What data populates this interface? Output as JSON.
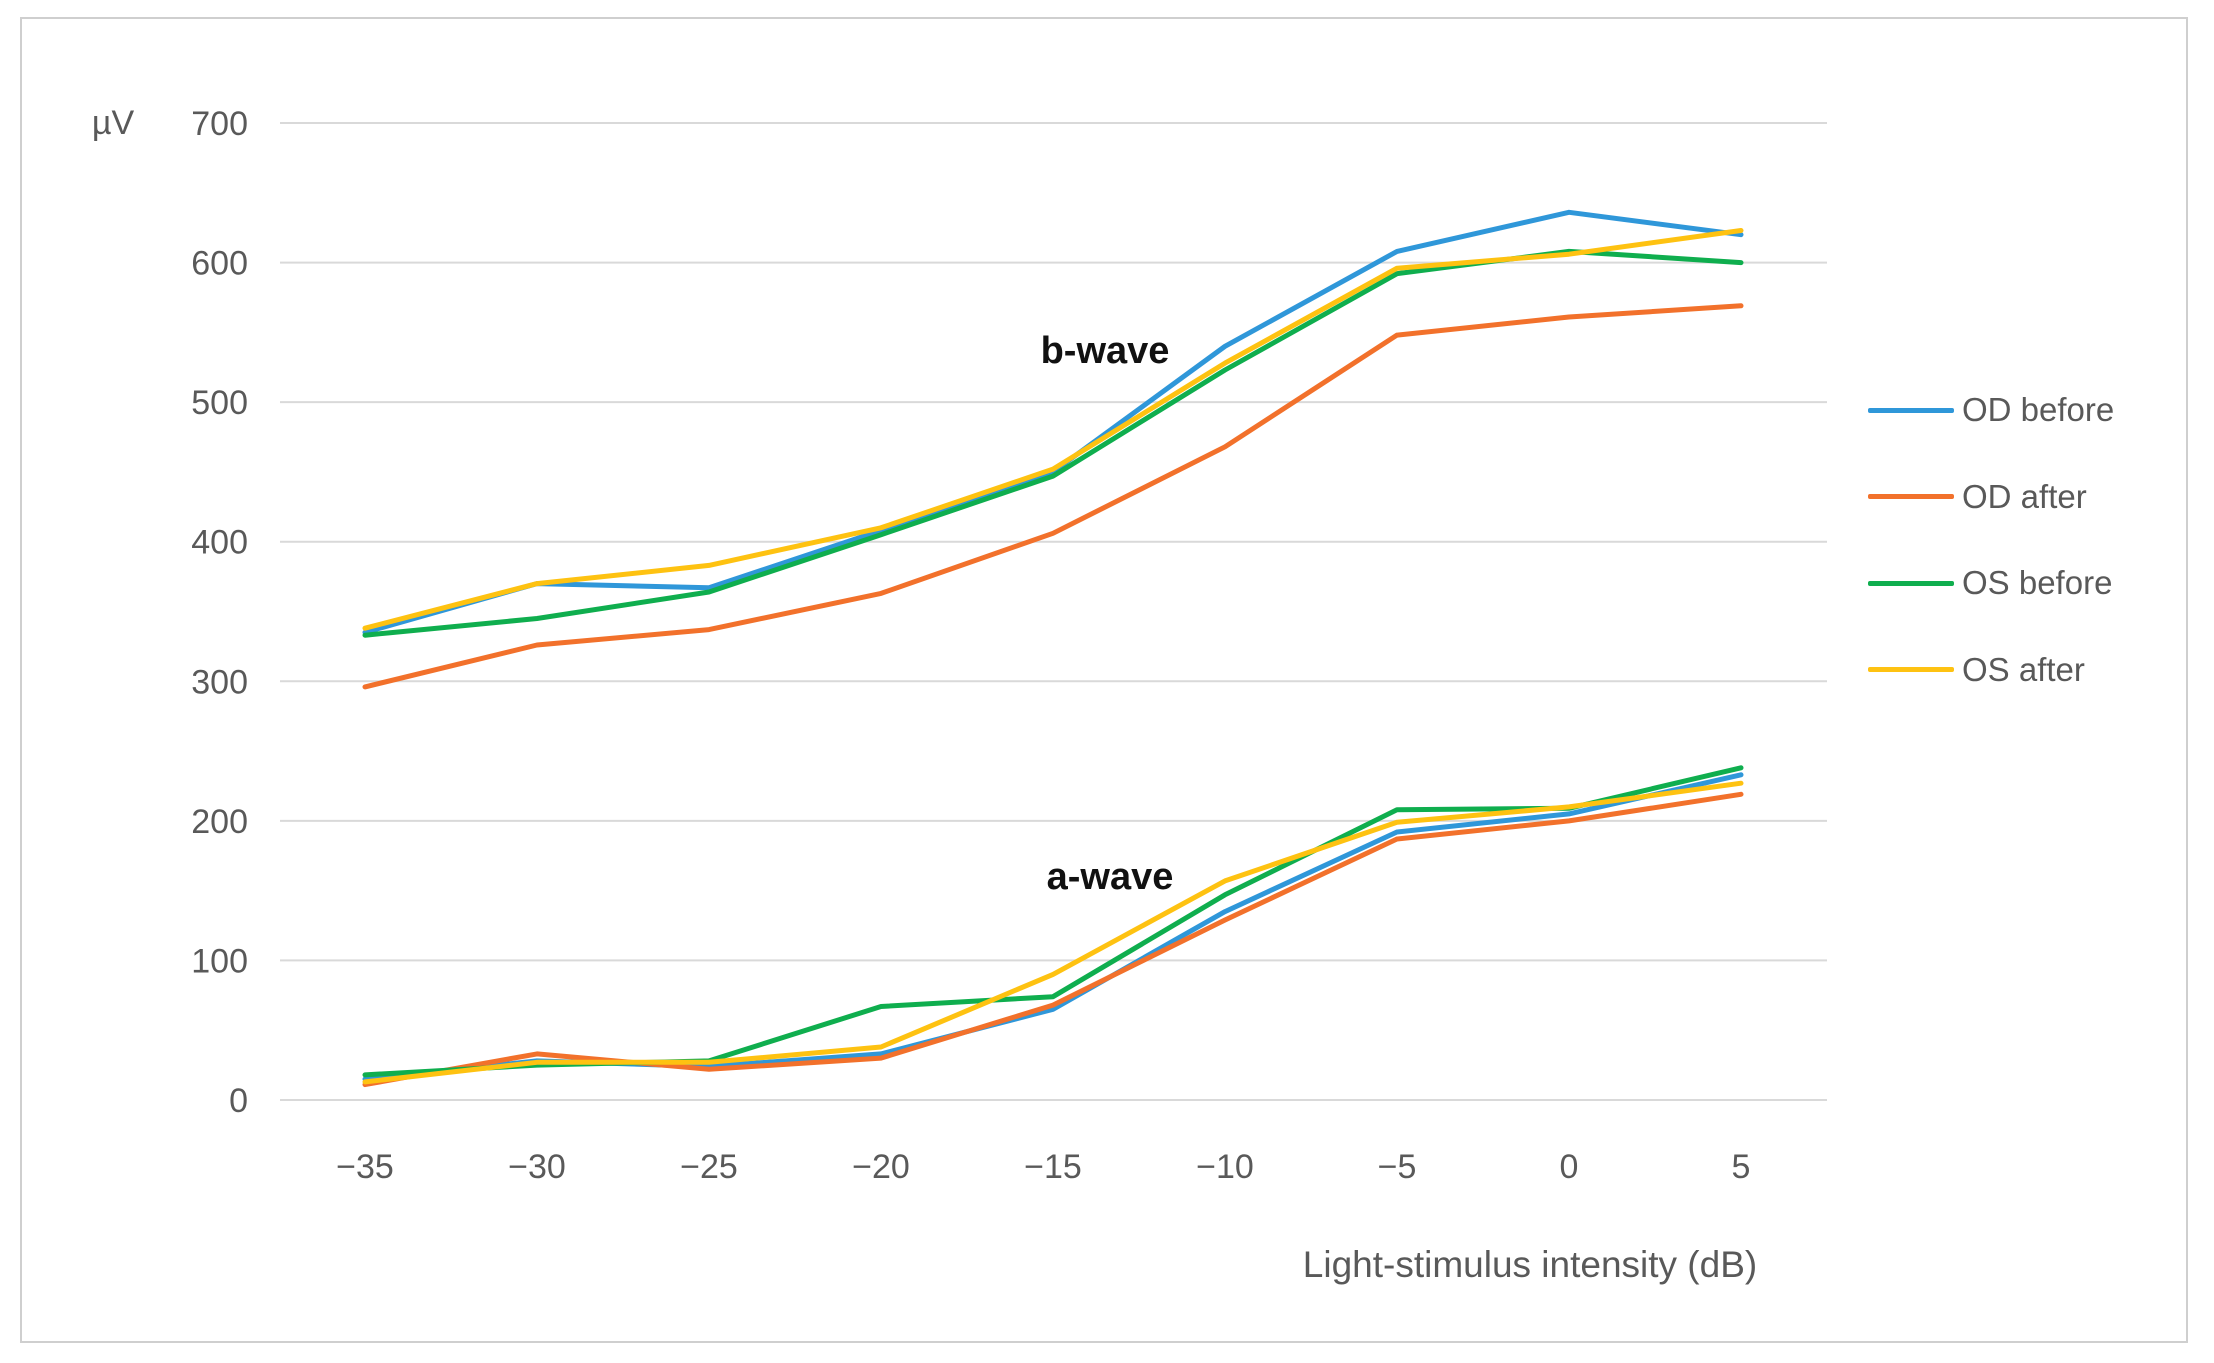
{
  "chart_data": {
    "type": "line",
    "title": "",
    "y_axis_unit": "µV",
    "x_axis_title": "Light-stimulus intensity (dB)",
    "x_values": [
      -35,
      -30,
      -25,
      -20,
      -15,
      -10,
      -5,
      0,
      5
    ],
    "x_tick_labels": [
      "−35",
      "−30",
      "−25",
      "−20",
      "−15",
      "−10",
      "−5",
      "0",
      "5"
    ],
    "y_ticks": [
      0,
      100,
      200,
      300,
      400,
      500,
      600,
      700
    ],
    "ylim": [
      0,
      700
    ],
    "grid": "horizontal",
    "legend_position": "right",
    "legend": [
      {
        "label": "OD before",
        "color": "#2f97d9"
      },
      {
        "label": "OD after",
        "color": "#f2712b"
      },
      {
        "label": "OS before",
        "color": "#0fae4e"
      },
      {
        "label": "OS after",
        "color": "#fec211"
      }
    ],
    "groups": [
      {
        "name": "b-wave",
        "series": [
          {
            "name": "OD before",
            "color": "#2f97d9",
            "values": [
              335,
              370,
              367,
              408,
              450,
              540,
              608,
              636,
              620
            ]
          },
          {
            "name": "OD after",
            "color": "#f2712b",
            "values": [
              296,
              326,
              337,
              363,
              406,
              468,
              548,
              561,
              569
            ]
          },
          {
            "name": "OS before",
            "color": "#0fae4e",
            "values": [
              333,
              345,
              364,
              405,
              447,
              523,
              592,
              608,
              600
            ]
          },
          {
            "name": "OS after",
            "color": "#fec211",
            "values": [
              338,
              370,
              383,
              410,
              452,
              528,
              596,
              606,
              623
            ]
          }
        ]
      },
      {
        "name": "a-wave",
        "series": [
          {
            "name": "OD before",
            "color": "#2f97d9",
            "values": [
              15,
              28,
              24,
              33,
              65,
              135,
              192,
              205,
              233
            ]
          },
          {
            "name": "OD after",
            "color": "#f2712b",
            "values": [
              11,
              33,
              22,
              30,
              68,
              129,
              187,
              200,
              219
            ]
          },
          {
            "name": "OS before",
            "color": "#0fae4e",
            "values": [
              18,
              25,
              28,
              67,
              74,
              147,
              208,
              209,
              238
            ]
          },
          {
            "name": "OS after",
            "color": "#fec211",
            "values": [
              13,
              27,
              27,
              38,
              90,
              157,
              199,
              210,
              227
            ]
          }
        ]
      }
    ],
    "colors": {
      "grid": "#d9d9d9",
      "tick_text": "#595959",
      "frame_border": "#cfcfcf",
      "annotation_text": "#111111"
    }
  }
}
